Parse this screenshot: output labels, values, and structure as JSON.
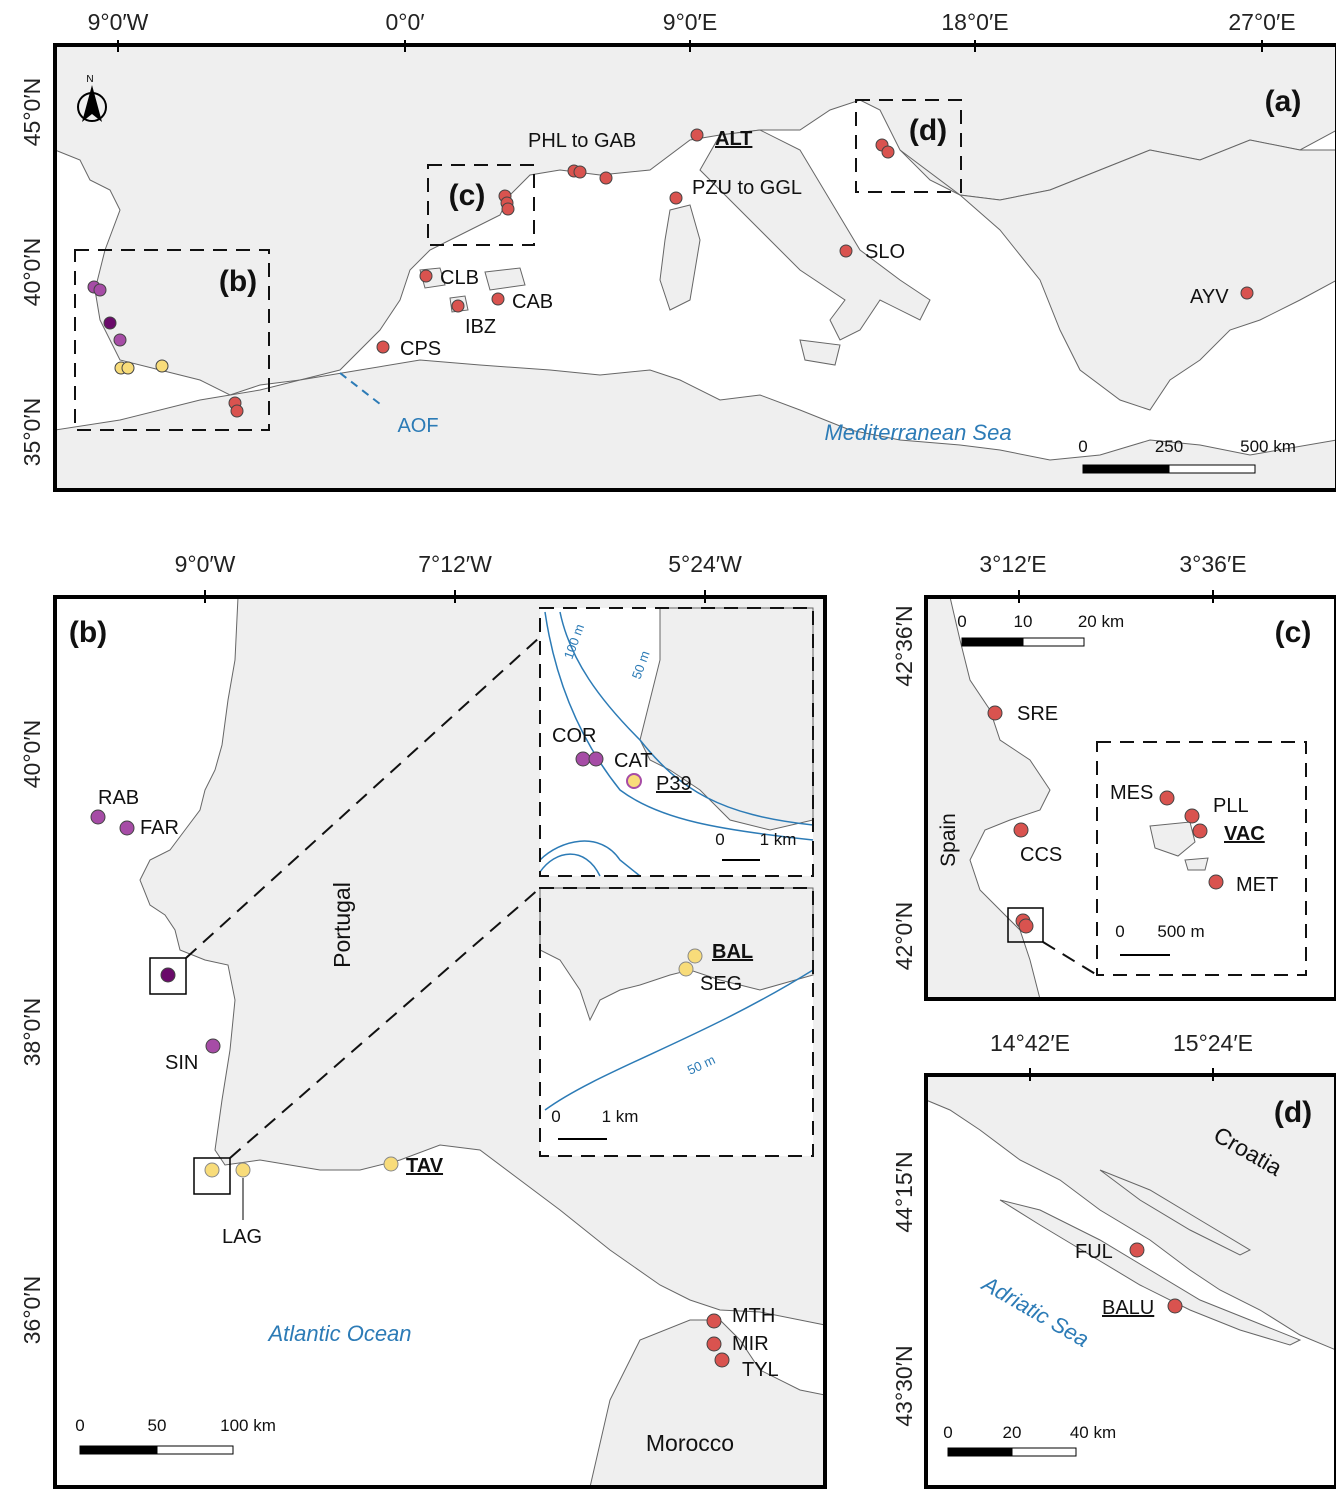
{
  "colors": {
    "land": "#efefef",
    "coast": "#666666",
    "site_red": "#d9534f",
    "site_purple_light": "#a64ca6",
    "site_purple_dark": "#6a0a6a",
    "site_yellow": "#f8dc7a",
    "blue_label": "#2c7bb6",
    "isobath": "#2c7bb6"
  },
  "panel_a": {
    "letter": "(a)",
    "lon_ticks": [
      "9°0′W",
      "0°0′",
      "9°0′E",
      "18°0′E",
      "27°0′E"
    ],
    "lat_ticks": [
      "45°0′N",
      "40°0′N",
      "35°0′N"
    ],
    "north_label": "N",
    "inset_labels": [
      "(b)",
      "(c)",
      "(d)"
    ],
    "sites": [
      "PHL to GAB",
      "ALT",
      "PZU to GGL",
      "SLO",
      "CLB",
      "CAB",
      "IBZ",
      "CPS",
      "AYV"
    ],
    "sea_label": "Mediterranean Sea",
    "feature_label": "AOF",
    "scalebar": [
      "0",
      "250",
      "500 km"
    ]
  },
  "panel_b": {
    "letter": "(b)",
    "lon_ticks": [
      "9°0′W",
      "7°12′W",
      "5°24′W"
    ],
    "lat_ticks": [
      "40°0′N",
      "38°0′N",
      "36°0′N"
    ],
    "sites": [
      "RAB",
      "FAR",
      "SIN",
      "LAG",
      "TAV",
      "MTH",
      "MIR",
      "TYL"
    ],
    "country_portugal": "Portugal",
    "country_morocco": "Morocco",
    "sea_label": "Atlantic Ocean",
    "scalebar": [
      "0",
      "50",
      "100 km"
    ],
    "inset_top": {
      "sites": [
        "COR",
        "CAT",
        "P39"
      ],
      "isobaths": [
        "100 m",
        "50 m"
      ],
      "scalebar": [
        "0",
        "1 km"
      ]
    },
    "inset_bottom": {
      "sites": [
        "BAL",
        "SEG"
      ],
      "isobath": "50 m",
      "scalebar": [
        "0",
        "1 km"
      ]
    }
  },
  "panel_c": {
    "letter": "(c)",
    "lon_ticks": [
      "3°12′E",
      "3°36′E"
    ],
    "lat_ticks": [
      "42°36′N",
      "42°0′N"
    ],
    "sites": [
      "SRE",
      "CCS",
      "MES",
      "PLL",
      "VAC",
      "MET"
    ],
    "country": "Spain",
    "scalebar": [
      "0",
      "10",
      "20 km"
    ],
    "inset_scalebar": [
      "0",
      "500 m"
    ]
  },
  "panel_d": {
    "letter": "(d)",
    "lon_ticks": [
      "14°42′E",
      "15°24′E"
    ],
    "lat_ticks": [
      "44°15′N",
      "43°30′N"
    ],
    "sites": [
      "FUL",
      "BALU"
    ],
    "country": "Croatia",
    "sea_label": "Adriatic Sea",
    "scalebar": [
      "0",
      "20",
      "40 km"
    ]
  }
}
